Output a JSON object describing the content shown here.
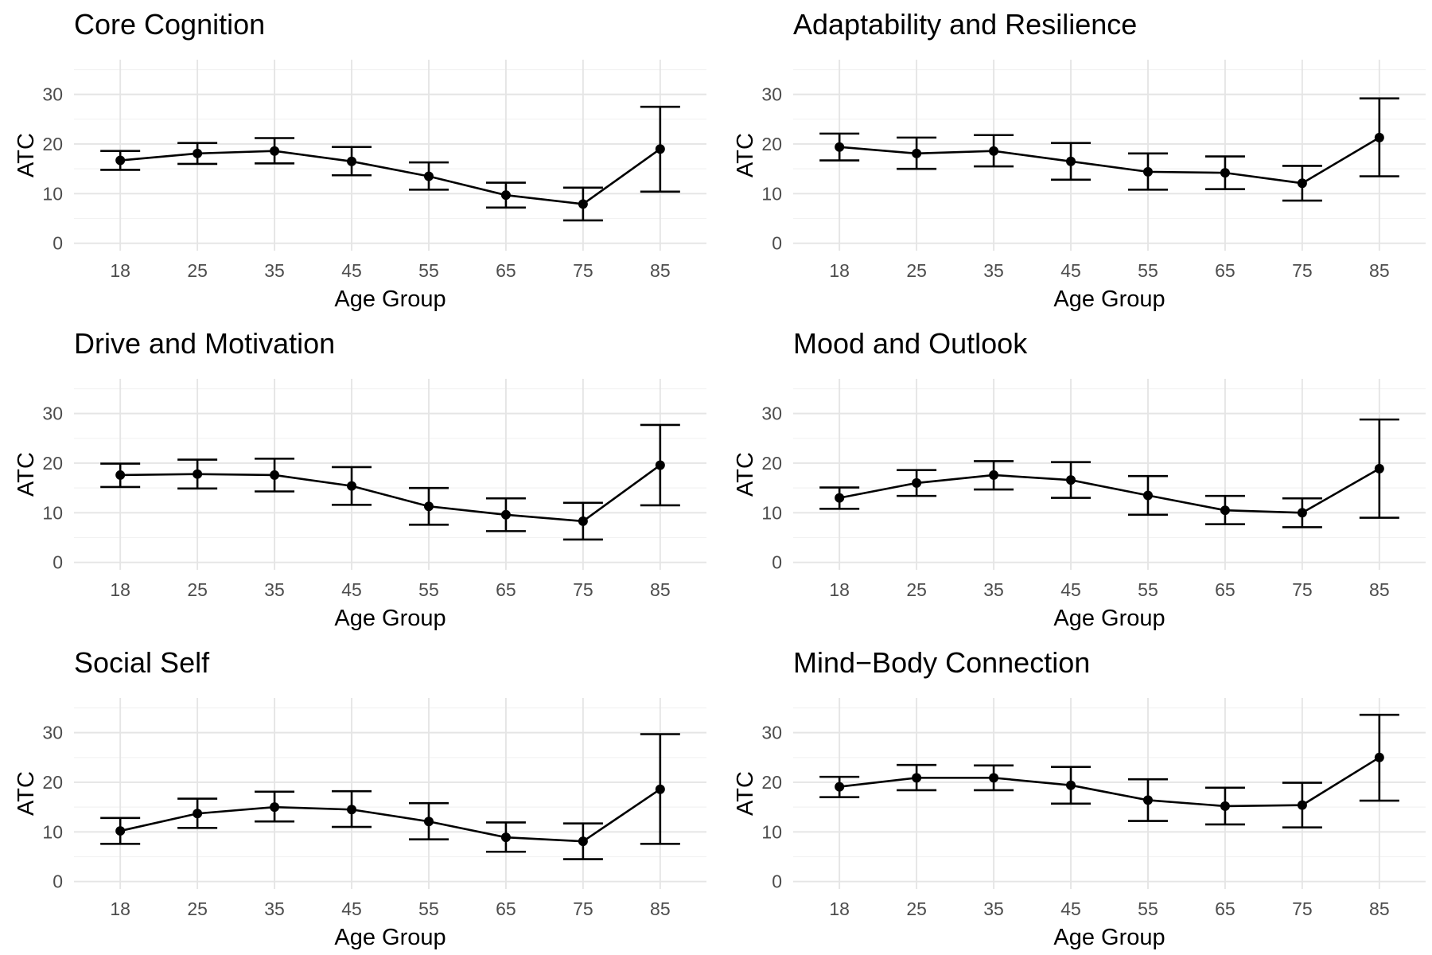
{
  "chart_data": [
    {
      "type": "line",
      "title": "Core Cognition",
      "xlabel": "Age Group",
      "ylabel": "ATC",
      "categories": [
        "18",
        "25",
        "35",
        "45",
        "55",
        "65",
        "75",
        "85"
      ],
      "yticks": [
        0,
        10,
        20,
        30
      ],
      "ylim": [
        -1.5,
        37
      ],
      "grid": true,
      "series": [
        {
          "values": [
            16.7,
            18.1,
            18.6,
            16.5,
            13.5,
            9.7,
            7.9,
            19.0
          ],
          "error_low": [
            14.8,
            16.0,
            16.1,
            13.7,
            10.8,
            7.2,
            4.6,
            10.4
          ],
          "error_high": [
            18.6,
            20.2,
            21.2,
            19.4,
            16.3,
            12.2,
            11.2,
            27.5
          ]
        }
      ]
    },
    {
      "type": "line",
      "title": "Adaptability and Resilience",
      "xlabel": "Age Group",
      "ylabel": "ATC",
      "categories": [
        "18",
        "25",
        "35",
        "45",
        "55",
        "65",
        "75",
        "85"
      ],
      "yticks": [
        0,
        10,
        20,
        30
      ],
      "ylim": [
        -1.5,
        37
      ],
      "grid": true,
      "series": [
        {
          "values": [
            19.4,
            18.1,
            18.6,
            16.5,
            14.4,
            14.2,
            12.1,
            21.3
          ],
          "error_low": [
            16.7,
            15.0,
            15.5,
            12.8,
            10.8,
            10.9,
            8.6,
            13.5
          ],
          "error_high": [
            22.1,
            21.3,
            21.8,
            20.2,
            18.1,
            17.5,
            15.6,
            29.2
          ]
        }
      ]
    },
    {
      "type": "line",
      "title": "Drive and Motivation",
      "xlabel": "Age Group",
      "ylabel": "ATC",
      "categories": [
        "18",
        "25",
        "35",
        "45",
        "55",
        "65",
        "75",
        "85"
      ],
      "yticks": [
        0,
        10,
        20,
        30
      ],
      "ylim": [
        -1.5,
        37
      ],
      "grid": true,
      "series": [
        {
          "values": [
            17.6,
            17.8,
            17.6,
            15.4,
            11.3,
            9.6,
            8.3,
            19.6
          ],
          "error_low": [
            15.2,
            14.9,
            14.3,
            11.6,
            7.6,
            6.3,
            4.6,
            11.5
          ],
          "error_high": [
            19.9,
            20.7,
            20.9,
            19.2,
            15.0,
            12.9,
            12.0,
            27.7
          ]
        }
      ]
    },
    {
      "type": "line",
      "title": "Mood and Outlook",
      "xlabel": "Age Group",
      "ylabel": "ATC",
      "categories": [
        "18",
        "25",
        "35",
        "45",
        "55",
        "65",
        "75",
        "85"
      ],
      "yticks": [
        0,
        10,
        20,
        30
      ],
      "ylim": [
        -1.5,
        37
      ],
      "grid": true,
      "series": [
        {
          "values": [
            13.0,
            16.0,
            17.6,
            16.6,
            13.5,
            10.5,
            10.0,
            18.9
          ],
          "error_low": [
            10.8,
            13.4,
            14.7,
            13.0,
            9.6,
            7.7,
            7.1,
            9.0
          ],
          "error_high": [
            15.1,
            18.6,
            20.4,
            20.2,
            17.4,
            13.4,
            12.9,
            28.8
          ]
        }
      ]
    },
    {
      "type": "line",
      "title": "Social Self",
      "xlabel": "Age Group",
      "ylabel": "ATC",
      "categories": [
        "18",
        "25",
        "35",
        "45",
        "55",
        "65",
        "75",
        "85"
      ],
      "yticks": [
        0,
        10,
        20,
        30
      ],
      "ylim": [
        -1.5,
        37
      ],
      "grid": true,
      "series": [
        {
          "values": [
            10.2,
            13.7,
            15.0,
            14.5,
            12.1,
            8.9,
            8.1,
            18.6
          ],
          "error_low": [
            7.6,
            10.8,
            12.1,
            11.0,
            8.5,
            6.0,
            4.5,
            7.6
          ],
          "error_high": [
            12.8,
            16.7,
            18.1,
            18.2,
            15.8,
            11.9,
            11.7,
            29.7
          ]
        }
      ]
    },
    {
      "type": "line",
      "title": "Mind−Body Connection",
      "xlabel": "Age Group",
      "ylabel": "ATC",
      "categories": [
        "18",
        "25",
        "35",
        "45",
        "55",
        "65",
        "75",
        "85"
      ],
      "yticks": [
        0,
        10,
        20,
        30
      ],
      "ylim": [
        -1.5,
        37
      ],
      "grid": true,
      "series": [
        {
          "values": [
            19.1,
            20.9,
            20.9,
            19.4,
            16.4,
            15.2,
            15.4,
            25.0
          ],
          "error_low": [
            17.0,
            18.4,
            18.4,
            15.7,
            12.2,
            11.5,
            10.9,
            16.3
          ],
          "error_high": [
            21.1,
            23.5,
            23.4,
            23.1,
            20.6,
            18.9,
            19.9,
            33.6
          ]
        }
      ]
    }
  ]
}
